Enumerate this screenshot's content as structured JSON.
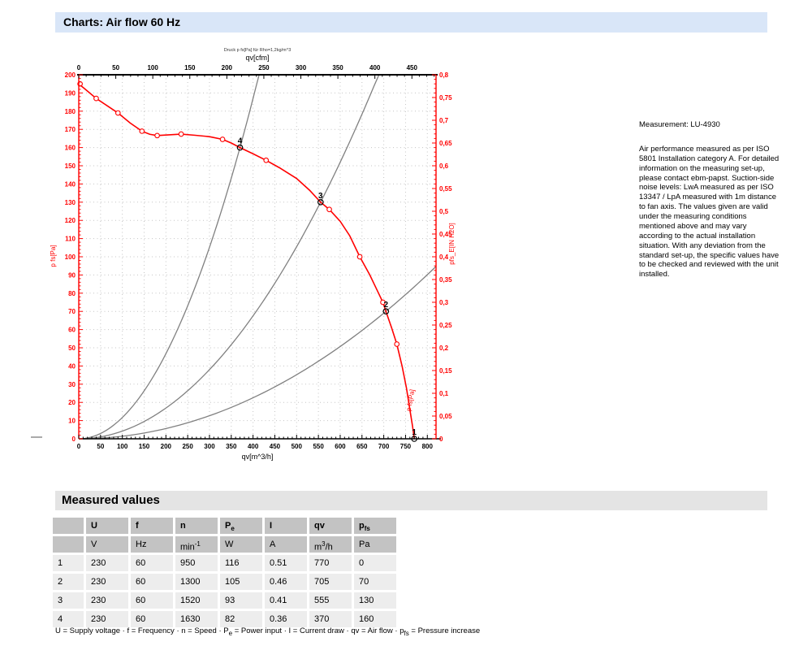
{
  "header": {
    "title": "Charts: Air flow 60 Hz"
  },
  "note": {
    "measurement": "Measurement: LU-4930",
    "paragraph": "Air performance measured as per ISO 5801 Installation category A. For detailed information on the measuring set-up, please contact ebm-papst. Suction-side noise levels: LwA measured as per ISO 13347 / LpA measured with 1m distance to fan axis. The values given are valid under the measuring conditions mentioned above and may vary according to the actual installation situation. With any deviation from the standard set-up, the specific values have to be checked and reviewed with the unit installed."
  },
  "chart_data": {
    "type": "line",
    "annotation_top": "Druck p fs[Pa] für Rho=1,2kg/m^3",
    "colors": {
      "curve": "#ff0000",
      "axis_red": "#ff0000",
      "axis_black": "#000000",
      "system": "#808080",
      "grid": "#c4c4c4"
    },
    "axes": {
      "top": {
        "label": "qv[cfm]",
        "min": 0,
        "max": 482.6,
        "label_step": 50,
        "minor_step": 10,
        "last_label": 450
      },
      "bottom": {
        "label": "qv[m^3/h]",
        "min": 0,
        "max": 820,
        "label_step": 50,
        "minor_step": 10,
        "last_label": 800
      },
      "left": {
        "label": "p fs[Pa]",
        "min": 0,
        "max": 200,
        "label_step": 10,
        "minor_step": 2
      },
      "right": {
        "label": "pfs_E[IN H2O]",
        "min": 0,
        "max": 0.8,
        "label_step": 0.05,
        "minor_step": 0.01,
        "decimal_comma": true
      }
    },
    "grid": {
      "x_step": 50,
      "y_step": 10
    },
    "fan_curve": {
      "label": "p fs[Pa]",
      "points": [
        [
          0,
          195
        ],
        [
          15,
          192
        ],
        [
          40,
          187
        ],
        [
          65,
          183
        ],
        [
          90,
          179
        ],
        [
          118,
          173.5
        ],
        [
          145,
          169
        ],
        [
          163,
          167.3
        ],
        [
          180,
          166.6
        ],
        [
          207,
          167
        ],
        [
          235,
          167.4
        ],
        [
          265,
          166.8
        ],
        [
          300,
          166
        ],
        [
          330,
          164.5
        ],
        [
          350,
          162.5
        ],
        [
          370,
          160
        ],
        [
          400,
          156.6
        ],
        [
          430,
          153
        ],
        [
          460,
          149
        ],
        [
          500,
          143
        ],
        [
          530,
          136.5
        ],
        [
          555,
          130
        ],
        [
          575,
          126
        ],
        [
          600,
          119.5
        ],
        [
          622,
          111.5
        ],
        [
          645,
          100
        ],
        [
          668,
          90
        ],
        [
          685,
          81.5
        ],
        [
          698,
          75
        ],
        [
          705,
          70
        ],
        [
          718,
          61
        ],
        [
          730,
          52
        ],
        [
          742,
          40
        ],
        [
          752,
          28
        ],
        [
          760,
          16
        ],
        [
          766,
          7
        ],
        [
          770,
          0
        ]
      ],
      "marker_points": [
        [
          3,
          195
        ],
        [
          40,
          187
        ],
        [
          90,
          179
        ],
        [
          145,
          169
        ],
        [
          180,
          166.6
        ],
        [
          235,
          167.4
        ],
        [
          330,
          164.5
        ],
        [
          430,
          153
        ],
        [
          575,
          126
        ],
        [
          645,
          100
        ],
        [
          698,
          75
        ],
        [
          730,
          52
        ]
      ]
    },
    "system_curves": [
      {
        "through_qv": 370,
        "through_pfs": 160,
        "q_end": 414
      },
      {
        "through_qv": 555,
        "through_pfs": 130,
        "q_end": 689
      },
      {
        "through_qv": 705,
        "through_pfs": 70,
        "q_end": 820
      }
    ],
    "operating_points": [
      {
        "label": "1",
        "qv": 770,
        "pfs": 0
      },
      {
        "label": "2",
        "qv": 705,
        "pfs": 70
      },
      {
        "label": "3",
        "qv": 555,
        "pfs": 130
      },
      {
        "label": "4",
        "qv": 370,
        "pfs": 160
      }
    ]
  },
  "table": {
    "title": "Measured values",
    "headers": [
      "",
      "U",
      "f",
      "n",
      "P_{e}",
      "I",
      "qv",
      "p_{fs}"
    ],
    "units": [
      "",
      "V",
      "Hz",
      "min^{-1}",
      "W",
      "A",
      "m^{3}/h",
      "Pa"
    ],
    "rows": [
      [
        "1",
        "230",
        "60",
        "950",
        "116",
        "0.51",
        "770",
        "0"
      ],
      [
        "2",
        "230",
        "60",
        "1300",
        "105",
        "0.46",
        "705",
        "70"
      ],
      [
        "3",
        "230",
        "60",
        "1520",
        "93",
        "0.41",
        "555",
        "130"
      ],
      [
        "4",
        "230",
        "60",
        "1630",
        "82",
        "0.36",
        "370",
        "160"
      ]
    ]
  },
  "footer_legend": "U = Supply voltage · f = Frequency · n = Speed · P_{e} = Power input · I = Current draw · qv = Air flow · p_{fs} = Pressure increase"
}
